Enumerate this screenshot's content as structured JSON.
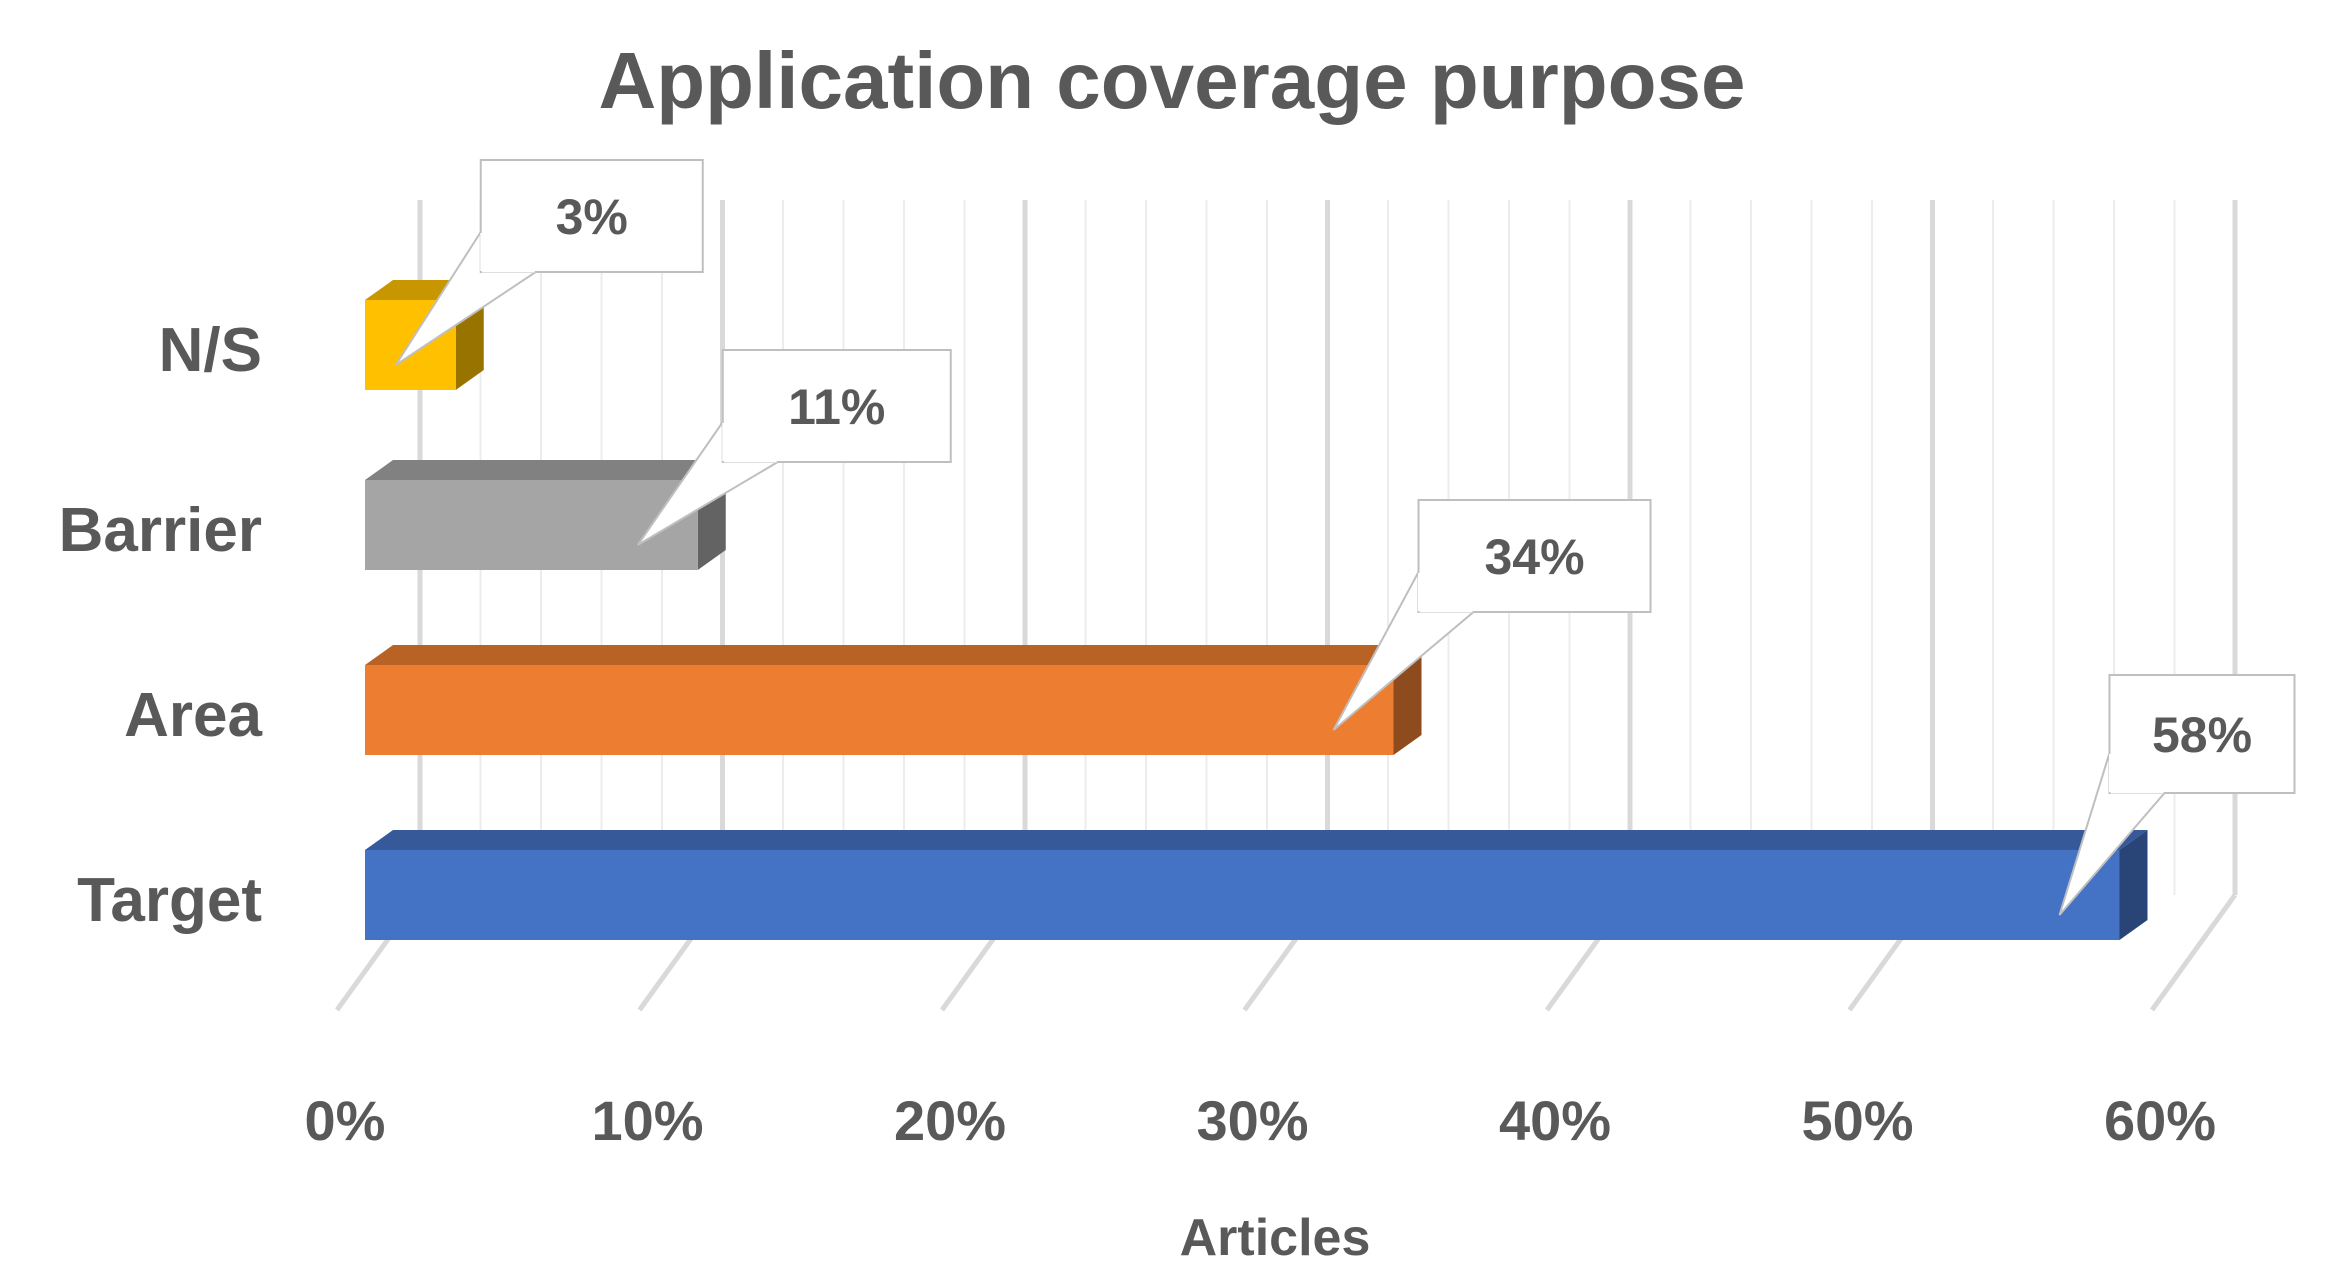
{
  "chart_data": {
    "type": "bar",
    "orientation": "horizontal",
    "style": "3d",
    "title": "Application coverage purpose",
    "xlabel": "Articles",
    "ylabel": "",
    "categories": [
      "N/S",
      "Barrier",
      "Area",
      "Target"
    ],
    "values": [
      0.03,
      0.11,
      0.34,
      0.58
    ],
    "data_labels": [
      "3%",
      "11%",
      "34%",
      "58%"
    ],
    "colors": [
      "#FFC000",
      "#A5A5A5",
      "#ED7D31",
      "#4472C4"
    ],
    "xlim": [
      0,
      0.6
    ],
    "xticks": [
      0,
      0.1,
      0.2,
      0.3,
      0.4,
      0.5,
      0.6
    ],
    "xtick_labels": [
      "0%",
      "10%",
      "20%",
      "30%",
      "40%",
      "50%",
      "60%"
    ],
    "grid": true,
    "legend": "none"
  }
}
